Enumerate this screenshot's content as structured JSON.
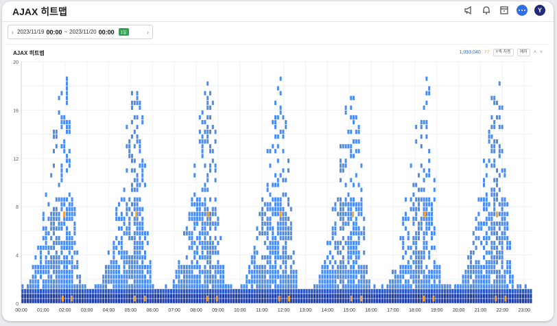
{
  "app": {
    "title": "AJAX 히트맵"
  },
  "header_icons": [
    "megaphone-icon",
    "bell-icon",
    "archive-icon",
    "chat-icon"
  ],
  "user": {
    "avatar_letter": "Y"
  },
  "range": {
    "start_date": "2023/11/19",
    "start_time": "00:00",
    "separator": "~",
    "end_date": "2023/11/20",
    "end_time": "00:00",
    "badge": "1일"
  },
  "panel": {
    "title": "AJAX 히트맵",
    "count": "1,093,040",
    "errors": "77",
    "yaxis_chip": "Y축 자동",
    "error_chip": "에러"
  },
  "colors": {
    "normal": "#4a8cf0",
    "dense": "#1f3fa8",
    "error": "#f2a33a",
    "accent": "#2d6ee0"
  },
  "chart_data": {
    "type": "heatmap",
    "title": "AJAX 히트맵",
    "ylim": [
      0,
      20
    ],
    "yticks": [
      "0",
      "4",
      "8",
      "12",
      "16",
      "20"
    ],
    "xticks": [
      "00:00",
      "01:00",
      "02:00",
      "03:00",
      "04:00",
      "05:00",
      "06:00",
      "07:00",
      "08:00",
      "09:00",
      "10:00",
      "11:00",
      "12:00",
      "13:00",
      "14:00",
      "15:00",
      "16:00",
      "17:00",
      "18:00",
      "19:00",
      "20:00",
      "21:00",
      "22:00",
      "23:00"
    ],
    "grid": true,
    "period_hours": 3.33,
    "peak_offsets_hours": [
      2.0,
      5.3,
      8.6,
      11.9,
      15.2,
      18.5,
      21.8
    ],
    "error_hours": [
      1.85,
      2.25,
      5.15,
      5.6,
      8.45,
      8.9,
      11.75,
      12.2,
      15.05,
      15.5,
      18.35,
      18.8,
      21.65,
      22.1
    ]
  }
}
